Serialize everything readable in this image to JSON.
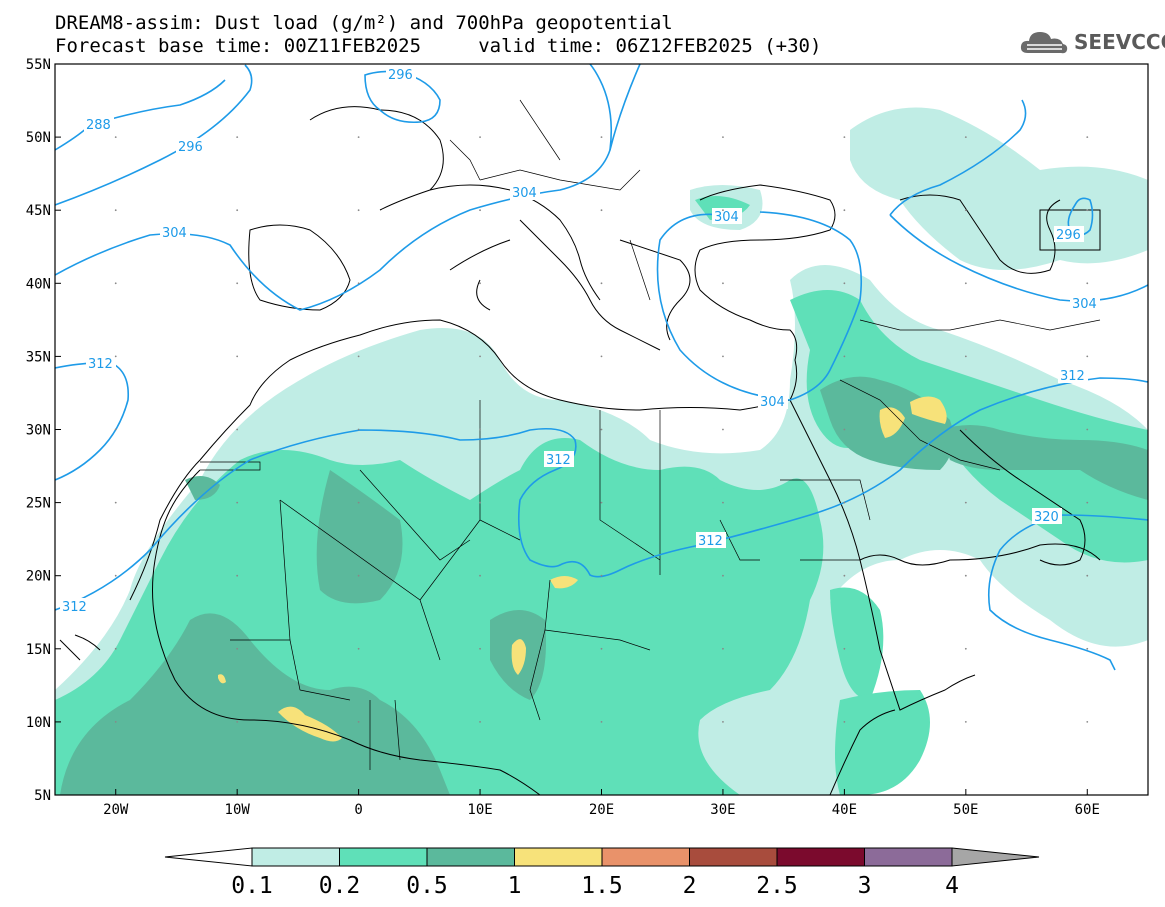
{
  "header": {
    "line1": "DREAM8-assim: Dust load (g/m²) and 700hPa geopotential",
    "line2": "Forecast base time: 00Z11FEB2025     valid time: 06Z12FEB2025 (+30)"
  },
  "logo": {
    "text": "SEEVCCC",
    "icon": "cloud-icon",
    "color": "#5a5a5a"
  },
  "map": {
    "lat_labels": [
      "55N",
      "50N",
      "45N",
      "40N",
      "35N",
      "30N",
      "25N",
      "20N",
      "15N",
      "10N",
      "5N"
    ],
    "lon_labels": [
      "20W",
      "10W",
      "0",
      "10E",
      "20E",
      "30E",
      "40E",
      "50E",
      "60E"
    ],
    "extent": {
      "lon_min": -25,
      "lon_max": 65,
      "lat_min": 5,
      "lat_max": 55
    },
    "contour_labels": [
      "288",
      "296",
      "296",
      "304",
      "304",
      "304",
      "304",
      "296",
      "304",
      "312",
      "312",
      "312",
      "312",
      "312",
      "320"
    ],
    "contour_color": "#1e9be8",
    "coastline_color": "#000000"
  },
  "colorbar": {
    "labels": [
      "0.1",
      "0.2",
      "0.5",
      "1",
      "1.5",
      "2",
      "2.5",
      "3",
      "4"
    ],
    "colors": [
      "#ffffff",
      "#c0ede5",
      "#5fe0b8",
      "#5bb99c",
      "#f7e27a",
      "#e9926a",
      "#a84c3d",
      "#7b0a2d",
      "#8c6b99",
      "#a6a6a6"
    ]
  }
}
